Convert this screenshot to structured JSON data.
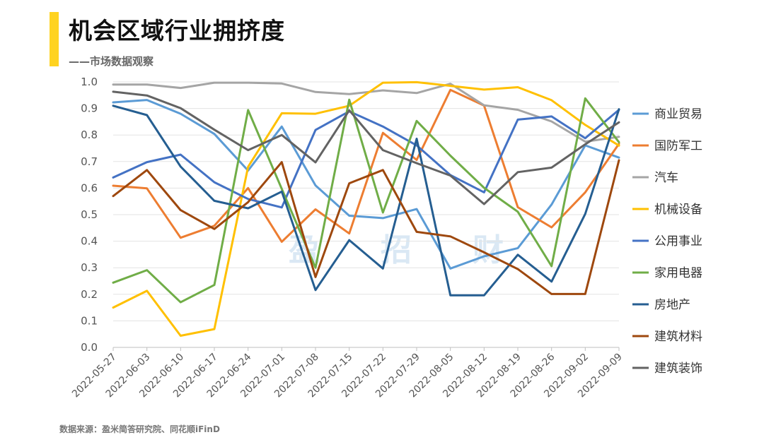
{
  "header": {
    "title": "机会区域行业拥挤度",
    "subtitle": "——市场数据观察"
  },
  "footer": {
    "source": "数据来源：盈米简答研究院、同花顺iFinD"
  },
  "watermark": [
    "盈",
    "招",
    "财"
  ],
  "chart_data": {
    "type": "line",
    "title": "机会区域行业拥挤度",
    "xlabel": "",
    "ylabel": "",
    "ylim": [
      0,
      1.0
    ],
    "y_ticks": [
      "0.0",
      "0.1",
      "0.2",
      "0.3",
      "0.4",
      "0.5",
      "0.6",
      "0.7",
      "0.8",
      "0.9",
      "1.0"
    ],
    "x": [
      "2022-05-27",
      "2022-06-03",
      "2022-06-10",
      "2022-06-17",
      "2022-06-24",
      "2022-07-01",
      "2022-07-08",
      "2022-07-15",
      "2022-07-22",
      "2022-07-29",
      "2022-08-05",
      "2022-08-12",
      "2022-08-19",
      "2022-08-26",
      "2022-09-02",
      "2022-09-09"
    ],
    "legend_position": "right",
    "grid": true,
    "series": [
      {
        "name": "商业贸易",
        "color": "#5b9bd5",
        "values": [
          0.923,
          0.932,
          0.88,
          0.804,
          0.666,
          0.832,
          0.61,
          0.496,
          0.487,
          0.521,
          0.297,
          0.343,
          0.374,
          0.538,
          0.761,
          0.715
        ]
      },
      {
        "name": "国防军工",
        "color": "#ed7d31",
        "values": [
          0.609,
          0.599,
          0.413,
          0.458,
          0.6,
          0.398,
          0.52,
          0.429,
          0.808,
          0.706,
          0.97,
          0.911,
          0.528,
          0.452,
          0.584,
          0.767
        ]
      },
      {
        "name": "汽车",
        "color": "#a5a5a5",
        "values": [
          0.99,
          0.99,
          0.977,
          0.997,
          0.997,
          0.994,
          0.962,
          0.954,
          0.968,
          0.958,
          0.993,
          0.912,
          0.895,
          0.851,
          0.775,
          0.793
        ]
      },
      {
        "name": "机械设备",
        "color": "#ffc000",
        "values": [
          0.15,
          0.213,
          0.044,
          0.069,
          0.68,
          0.882,
          0.88,
          0.91,
          0.997,
          0.999,
          0.985,
          0.971,
          0.98,
          0.931,
          0.838,
          0.76
        ]
      },
      {
        "name": "公用事业",
        "color": "#4472c4",
        "values": [
          0.64,
          0.698,
          0.726,
          0.622,
          0.559,
          0.527,
          0.819,
          0.889,
          0.832,
          0.761,
          0.649,
          0.584,
          0.858,
          0.87,
          0.788,
          0.895
        ]
      },
      {
        "name": "家用电器",
        "color": "#70ad47",
        "values": [
          0.244,
          0.291,
          0.17,
          0.235,
          0.894,
          0.597,
          0.3,
          0.933,
          0.508,
          0.853,
          0.722,
          0.601,
          0.511,
          0.306,
          0.938,
          0.773
        ]
      },
      {
        "name": "房地产",
        "color": "#255e91",
        "values": [
          0.91,
          0.875,
          0.681,
          0.552,
          0.524,
          0.587,
          0.216,
          0.404,
          0.297,
          0.786,
          0.196,
          0.196,
          0.349,
          0.248,
          0.503,
          0.897
        ]
      },
      {
        "name": "建筑材料",
        "color": "#9e480e",
        "values": [
          0.57,
          0.668,
          0.517,
          0.446,
          0.547,
          0.698,
          0.265,
          0.618,
          0.668,
          0.435,
          0.418,
          0.358,
          0.295,
          0.201,
          0.201,
          0.705
        ]
      },
      {
        "name": "建筑装饰",
        "color": "#636363",
        "values": [
          0.963,
          0.949,
          0.901,
          0.82,
          0.743,
          0.8,
          0.697,
          0.893,
          0.743,
          0.694,
          0.647,
          0.54,
          0.66,
          0.677,
          0.765,
          0.848
        ]
      }
    ]
  }
}
